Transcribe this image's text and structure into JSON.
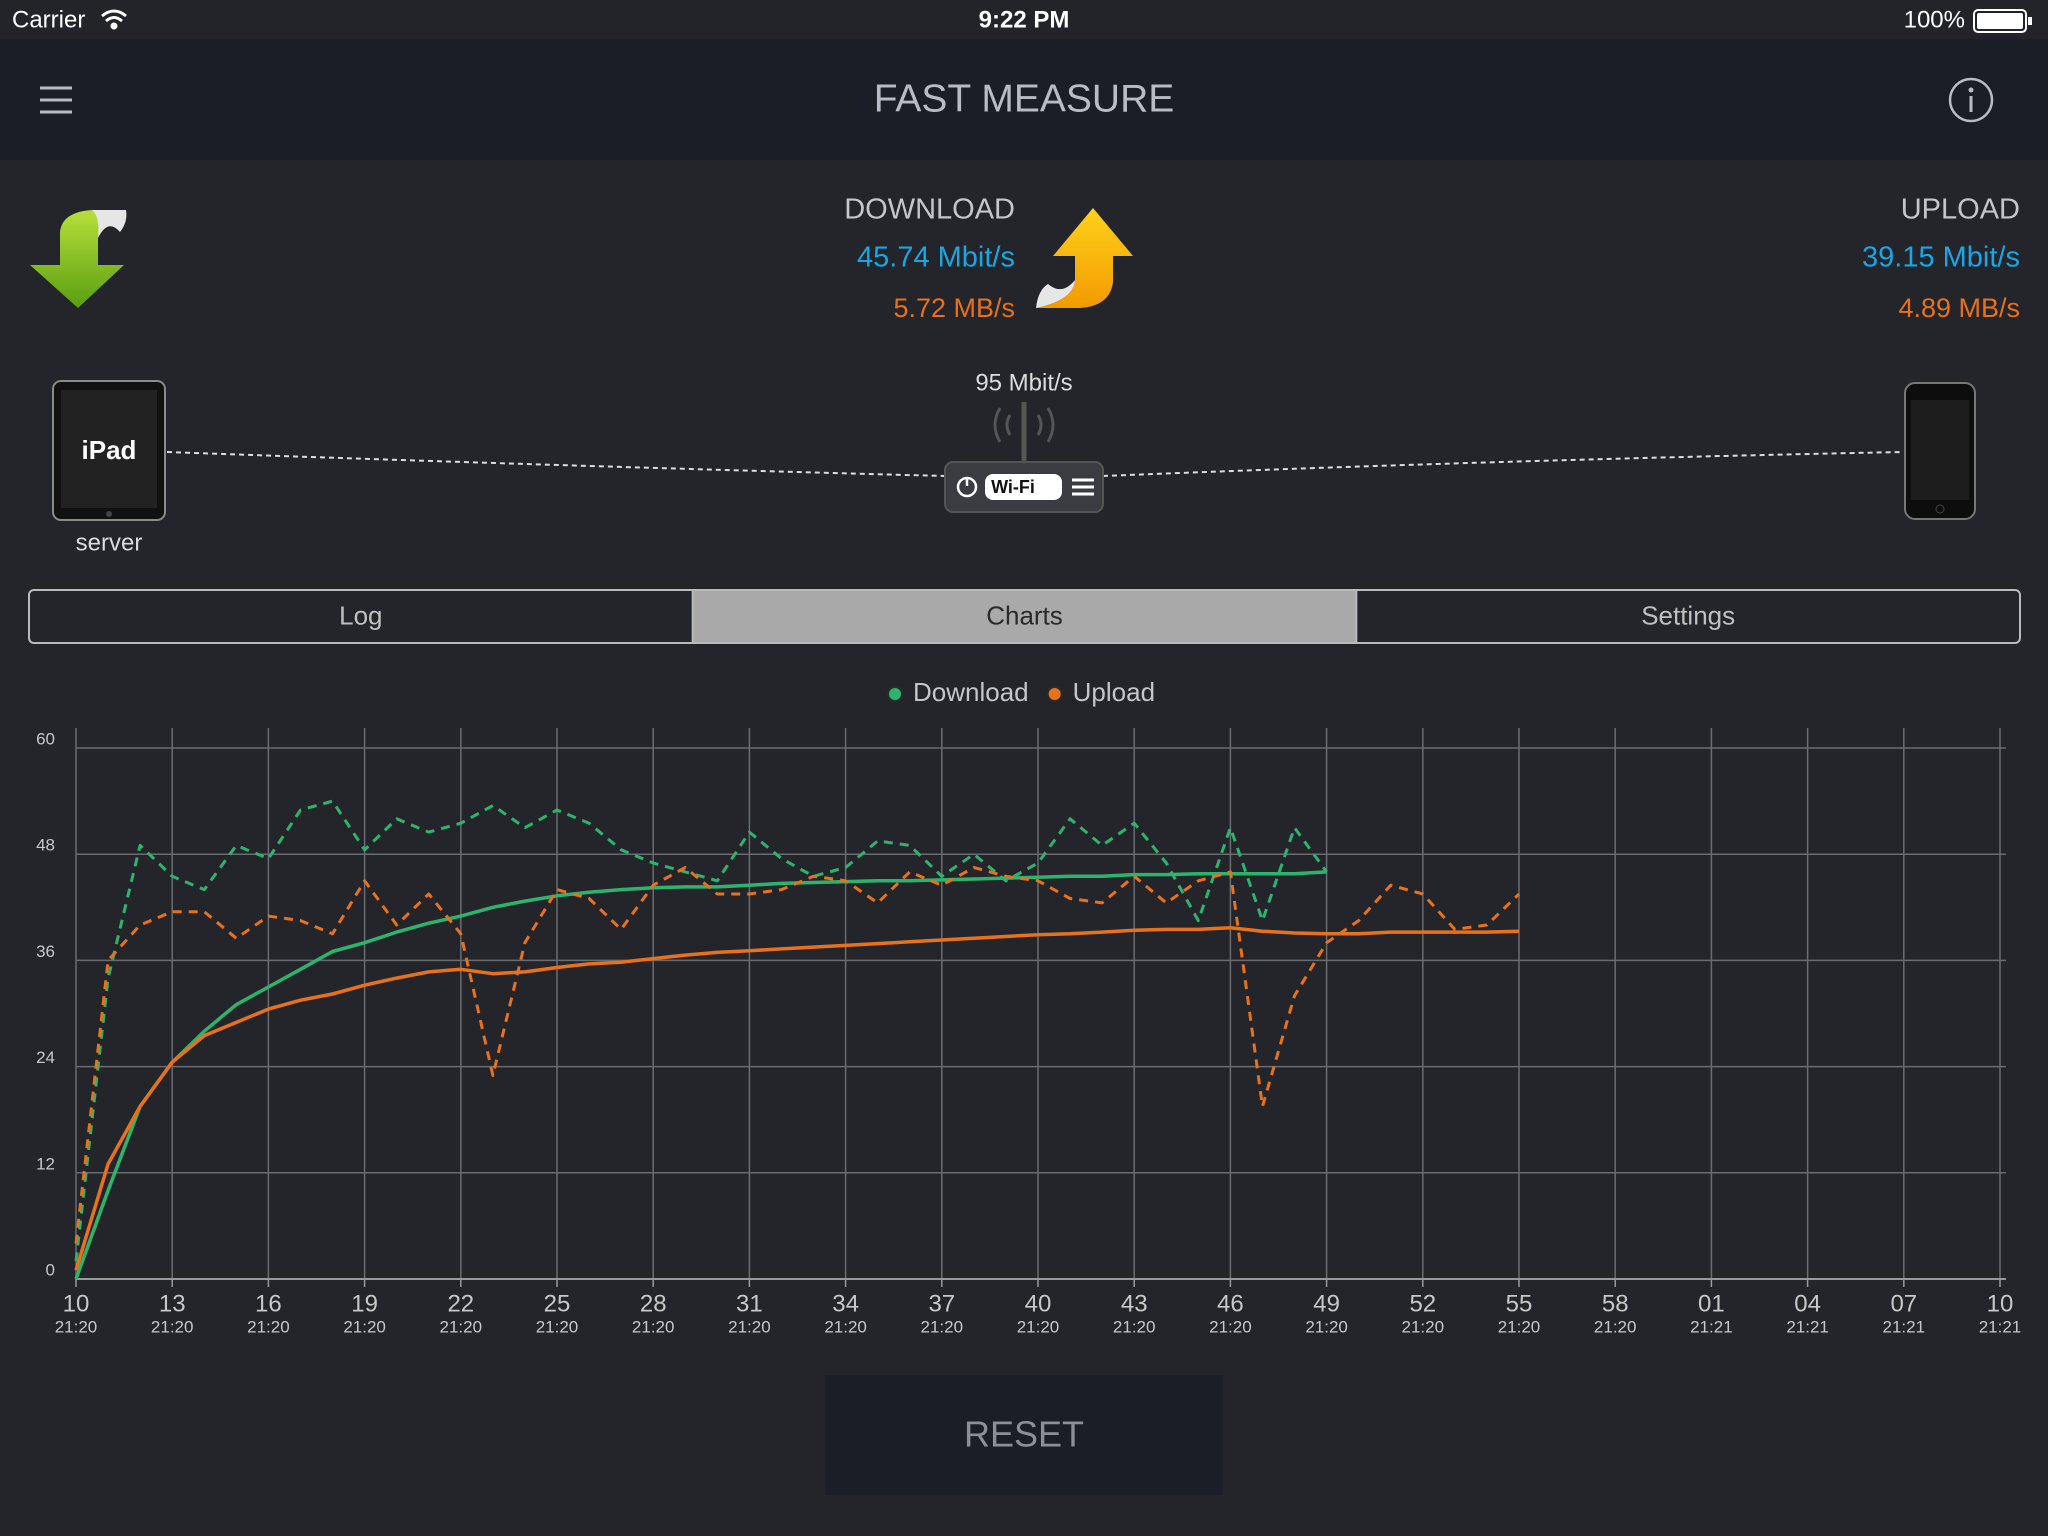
{
  "status_bar": {
    "carrier": "Carrier",
    "time": "9:22 PM",
    "battery": "100%"
  },
  "nav": {
    "title": "FAST MEASURE"
  },
  "download": {
    "label": "DOWNLOAD",
    "rate": "45.74 Mbit/s",
    "bytes": "5.72 MB/s"
  },
  "upload": {
    "label": "UPLOAD",
    "rate": "39.15 Mbit/s",
    "bytes": "4.89 MB/s"
  },
  "network": {
    "link_speed": "95 Mbit/s",
    "server_label": "server",
    "device_label": "iPad",
    "router_label": "Wi-Fi"
  },
  "tabs": [
    {
      "label": "Log",
      "selected": false
    },
    {
      "label": "Charts",
      "selected": true
    },
    {
      "label": "Settings",
      "selected": false
    }
  ],
  "chart_data": {
    "type": "line",
    "x": [
      10,
      11,
      12,
      13,
      14,
      15,
      16,
      17,
      18,
      19,
      20,
      21,
      22,
      23,
      24,
      25,
      26,
      27,
      28,
      29,
      30,
      31,
      32,
      33,
      34,
      35,
      36,
      37,
      38,
      39,
      40,
      41,
      42,
      43,
      44,
      45,
      46,
      47,
      48,
      49,
      50,
      51,
      52,
      53,
      54,
      55
    ],
    "series": [
      {
        "name": "Download",
        "color": "#2db46c",
        "values": [
          2,
          34,
          49,
          45.5,
          44,
          49,
          47.5,
          53,
          54,
          48.5,
          52,
          50.5,
          51.5,
          53.5,
          51,
          53,
          51.5,
          48.5,
          47,
          46,
          45,
          50.5,
          47.5,
          45.5,
          46.5,
          49.5,
          49,
          45.5,
          48,
          45,
          47,
          52,
          49,
          51.5,
          47,
          40.5,
          51,
          40.5,
          51,
          46,
          null,
          null,
          null,
          null,
          null,
          null
        ],
        "average": [
          0,
          10,
          19.5,
          24.5,
          28,
          31,
          33,
          35,
          37,
          38,
          39.2,
          40.2,
          41,
          42,
          42.7,
          43.3,
          43.7,
          44,
          44.2,
          44.3,
          44.3,
          44.5,
          44.7,
          44.8,
          44.9,
          45,
          45,
          45.1,
          45.2,
          45.3,
          45.4,
          45.5,
          45.5,
          45.7,
          45.7,
          45.8,
          45.8,
          45.8,
          45.8,
          46,
          null,
          null,
          null,
          null,
          null,
          null
        ]
      },
      {
        "name": "Upload",
        "color": "#e8711a",
        "values": [
          4,
          36,
          40,
          41.5,
          41.5,
          38.5,
          41,
          40.5,
          39,
          45,
          40,
          43.5,
          39,
          23,
          38,
          44,
          43,
          39.5,
          44.5,
          46.5,
          43.5,
          43.5,
          44,
          45.5,
          45,
          42.5,
          46,
          44.5,
          46.5,
          45.5,
          45,
          43,
          42.5,
          45.5,
          42.5,
          45,
          46,
          19.5,
          32,
          38,
          40.5,
          44.5,
          43.5,
          39.5,
          40,
          43.5
        ],
        "average": [
          1,
          13,
          19.5,
          24.5,
          27.5,
          29,
          30.5,
          31.5,
          32.2,
          33.2,
          34,
          34.7,
          35,
          34.5,
          34.7,
          35.2,
          35.6,
          35.8,
          36.2,
          36.6,
          36.9,
          37.1,
          37.3,
          37.5,
          37.7,
          37.9,
          38.1,
          38.3,
          38.5,
          38.7,
          38.9,
          39,
          39.2,
          39.4,
          39.5,
          39.5,
          39.7,
          39.3,
          39.1,
          39,
          39,
          39.2,
          39.2,
          39.2,
          39.2,
          39.3
        ]
      }
    ],
    "xlim": [
      10,
      70
    ],
    "ylim": [
      0,
      60
    ],
    "yticks": [
      0,
      12,
      24,
      36,
      48,
      60
    ],
    "xticks": [
      10,
      13,
      16,
      19,
      22,
      25,
      28,
      31,
      34,
      37,
      40,
      43,
      46,
      49,
      52,
      55,
      58,
      {
        "value": 61,
        "label": "01"
      },
      {
        "value": 64,
        "label": "04"
      },
      {
        "value": 67,
        "label": "07"
      },
      {
        "value": 70,
        "label": "10"
      }
    ],
    "xtick_times": [
      "21:20",
      "21:20",
      "21:20",
      "21:20",
      "21:20",
      "21:20",
      "21:20",
      "21:20",
      "21:20",
      "21:20",
      "21:20",
      "21:20",
      "21:20",
      "21:20",
      "21:20",
      "21:20",
      "21:20",
      "21:21",
      "21:21",
      "21:21",
      "21:21"
    ],
    "grid": true
  },
  "reset": {
    "label": "RESET"
  }
}
